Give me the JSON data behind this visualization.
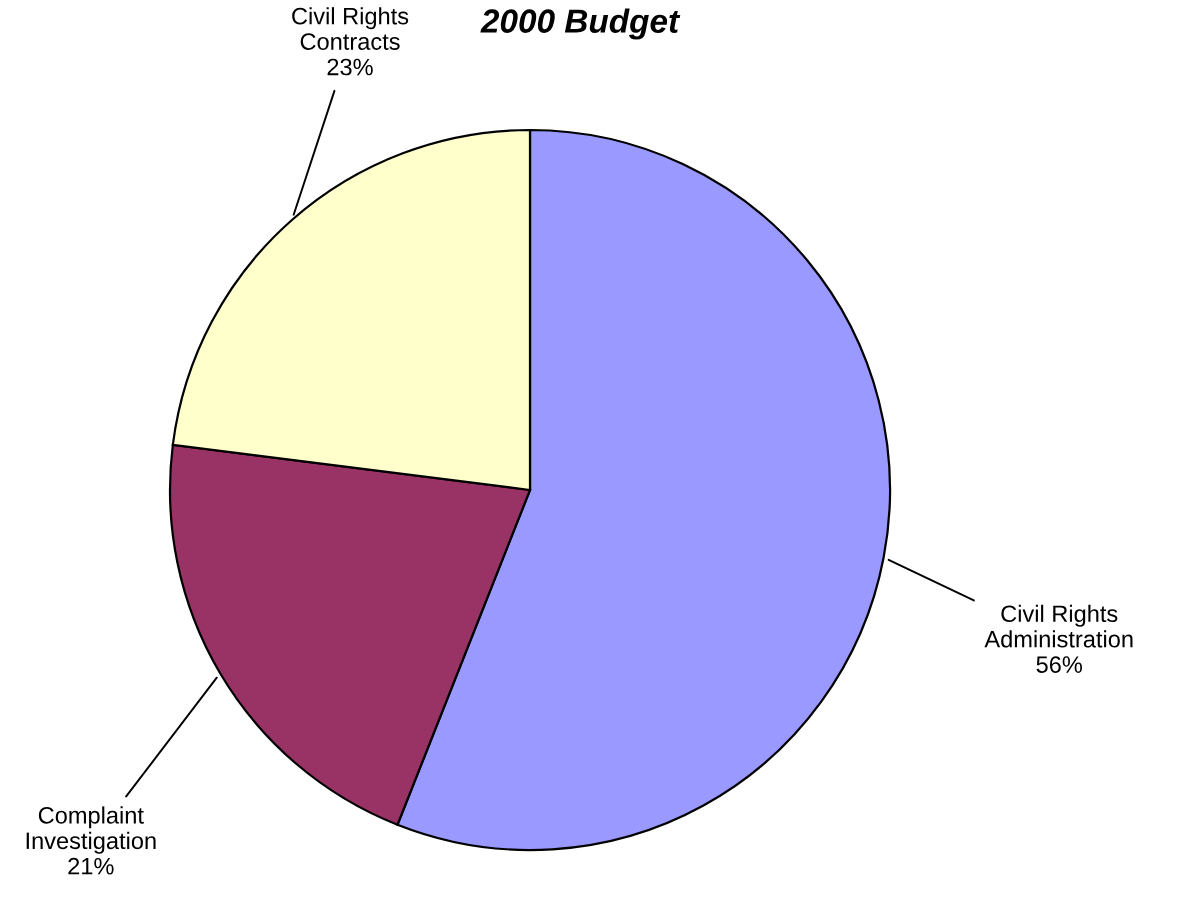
{
  "chart_data": {
    "type": "pie",
    "title": "2000 Budget",
    "categories": [
      "Civil Rights\nAdministration",
      "Complaint\nInvestigation",
      "Civil Rights\nContracts"
    ],
    "values": [
      56,
      21,
      23
    ],
    "colors": [
      "#9999ff",
      "#993366",
      "#ffffcc"
    ],
    "value_labels": [
      "56%",
      "21%",
      "23%"
    ],
    "legend": false
  }
}
